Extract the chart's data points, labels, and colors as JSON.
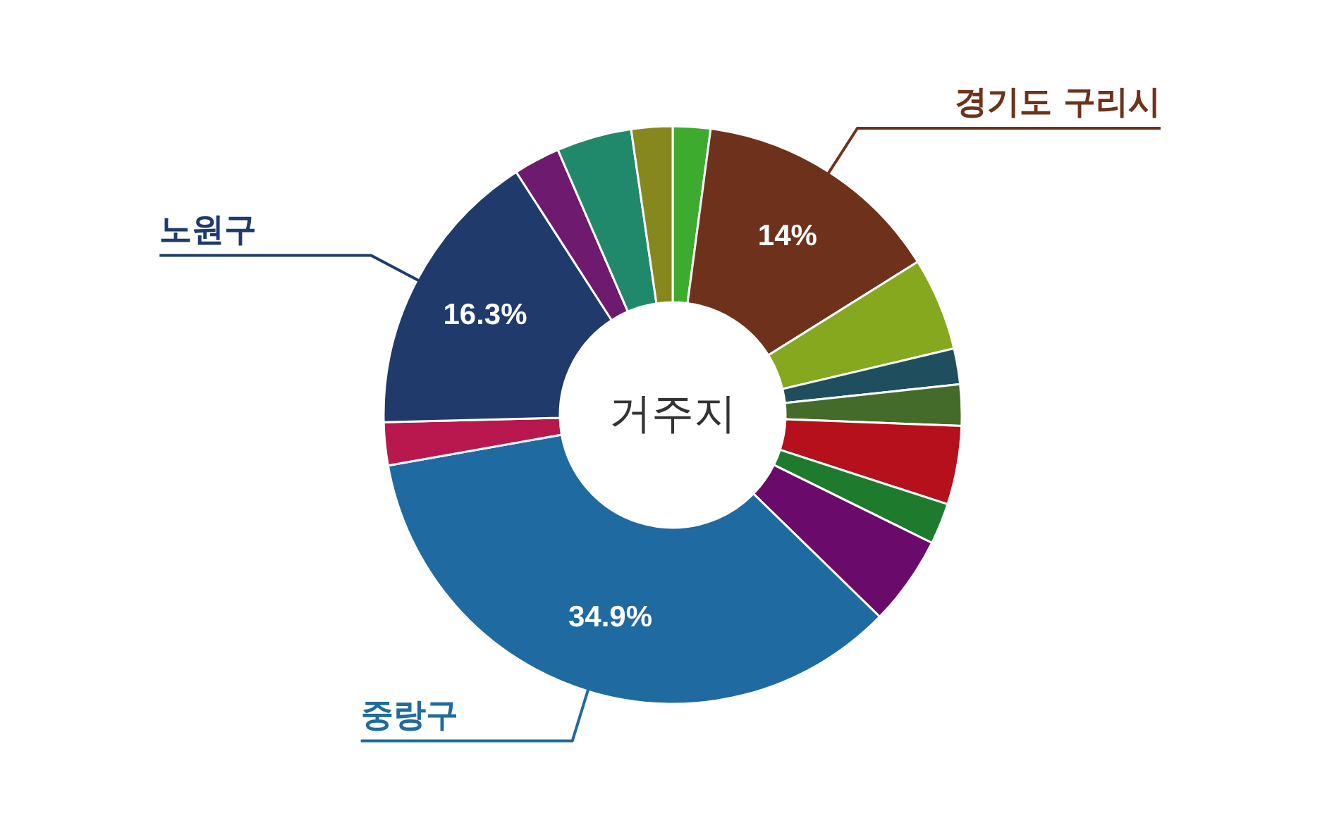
{
  "chart_data": {
    "type": "donut",
    "title": "거주지",
    "categories": [
      null,
      "경기도 구리시",
      null,
      null,
      null,
      null,
      null,
      null,
      "중랑구",
      null,
      "노원구",
      null,
      null,
      null
    ],
    "values": [
      2.1,
      14,
      5.2,
      2,
      2.3,
      4.4,
      2.3,
      5,
      34.9,
      2.4,
      16.3,
      2.6,
      4.2,
      2.3
    ],
    "value_labels": [
      null,
      "14%",
      null,
      null,
      null,
      null,
      null,
      null,
      "34.9%",
      null,
      "16.3%",
      null,
      null,
      null
    ],
    "colors": [
      "#3dab2e",
      "#6e321c",
      "#86a81e",
      "#1f4e5f",
      "#456b2a",
      "#b5101c",
      "#1e7a2d",
      "#6a0a6a",
      "#1f6aa0",
      "#b8184e",
      "#1f3a6b",
      "#6d1a6f",
      "#21896b",
      "#86881e"
    ]
  }
}
